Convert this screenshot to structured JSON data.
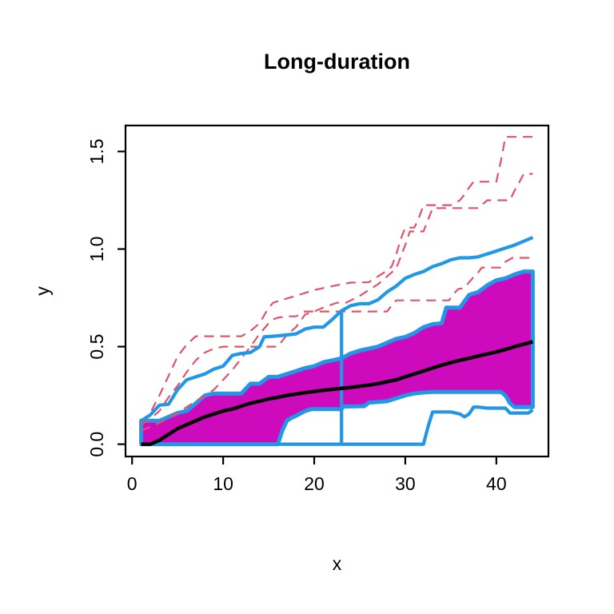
{
  "title": "Long-duration",
  "chart_data": {
    "type": "line",
    "title": "Long-duration",
    "xlabel": "x",
    "ylabel": "y",
    "xlim": [
      -0.72,
      45.72
    ],
    "ylim": [
      -0.063,
      1.633
    ],
    "xticks": [
      "0",
      "10",
      "20",
      "30",
      "40"
    ],
    "yticks": [
      "0.0",
      "0.5",
      "1.0",
      "1.5"
    ],
    "grid": false,
    "legend": "none",
    "description": "Functional boxplot: magenta central 50% region with blue envelope, black median curve, blue upper/lower fences with vertical whisker at x=23, three dashed red outlier curves",
    "colors": {
      "envelope_blue": "#2297E6",
      "region_magenta": "#CD0BBC",
      "outlier_red": "#DF536B",
      "median_black": "#000000"
    },
    "series": [
      {
        "name": "central-region",
        "type": "region",
        "fill": "#CD0BBC",
        "stroke": "#2297E6",
        "stroke_width": 5,
        "top": [
          [
            1,
            0.12
          ],
          [
            2,
            0.12
          ],
          [
            3,
            0.12
          ],
          [
            4,
            0.14
          ],
          [
            5,
            0.16
          ],
          [
            6,
            0.17
          ],
          [
            7,
            0.21
          ],
          [
            8,
            0.25
          ],
          [
            9,
            0.26
          ],
          [
            10,
            0.26
          ],
          [
            11,
            0.26
          ],
          [
            12,
            0.26
          ],
          [
            13,
            0.31
          ],
          [
            14,
            0.31
          ],
          [
            15,
            0.345
          ],
          [
            16,
            0.345
          ],
          [
            17,
            0.36
          ],
          [
            18,
            0.375
          ],
          [
            19,
            0.39
          ],
          [
            20,
            0.4
          ],
          [
            21,
            0.42
          ],
          [
            22,
            0.43
          ],
          [
            23,
            0.44
          ],
          [
            24,
            0.465
          ],
          [
            25,
            0.48
          ],
          [
            26,
            0.49
          ],
          [
            27,
            0.5
          ],
          [
            28,
            0.52
          ],
          [
            29,
            0.54
          ],
          [
            30,
            0.55
          ],
          [
            31,
            0.57
          ],
          [
            32,
            0.6
          ],
          [
            33,
            0.615
          ],
          [
            34,
            0.62
          ],
          [
            34.5,
            0.7
          ],
          [
            35,
            0.7
          ],
          [
            36,
            0.7
          ],
          [
            37,
            0.765
          ],
          [
            38,
            0.78
          ],
          [
            39,
            0.815
          ],
          [
            40,
            0.84
          ],
          [
            41,
            0.85
          ],
          [
            42,
            0.87
          ],
          [
            43,
            0.885
          ],
          [
            44,
            0.885
          ]
        ],
        "bottom": [
          [
            1,
            0
          ],
          [
            16,
            0
          ],
          [
            16.5,
            0.07
          ],
          [
            17,
            0.12
          ],
          [
            17.5,
            0.135
          ],
          [
            18,
            0.145
          ],
          [
            19,
            0.17
          ],
          [
            19.7,
            0.18
          ],
          [
            23,
            0.18
          ],
          [
            23.2,
            0.193
          ],
          [
            25.5,
            0.195
          ],
          [
            26,
            0.213
          ],
          [
            28,
            0.22
          ],
          [
            29,
            0.235
          ],
          [
            30,
            0.25
          ],
          [
            31,
            0.26
          ],
          [
            32,
            0.265
          ],
          [
            33,
            0.268
          ],
          [
            40.5,
            0.268
          ],
          [
            41,
            0.25
          ],
          [
            41.5,
            0.21
          ],
          [
            42,
            0.19
          ],
          [
            44,
            0.19
          ]
        ]
      },
      {
        "name": "outlier-curve-1",
        "color": "#DF536B",
        "width": 2.2,
        "dash": "12 8",
        "points": [
          [
            1,
            0.11
          ],
          [
            2,
            0.16
          ],
          [
            3,
            0.25
          ],
          [
            4,
            0.35
          ],
          [
            5,
            0.45
          ],
          [
            6,
            0.51
          ],
          [
            7,
            0.553
          ],
          [
            12,
            0.553
          ],
          [
            13,
            0.58
          ],
          [
            14,
            0.62
          ],
          [
            15,
            0.7
          ],
          [
            15.5,
            0.725
          ],
          [
            16.5,
            0.74
          ],
          [
            18,
            0.76
          ],
          [
            20,
            0.79
          ],
          [
            21,
            0.8
          ],
          [
            22,
            0.81
          ],
          [
            23,
            0.82
          ],
          [
            24,
            0.828
          ],
          [
            26,
            0.83
          ],
          [
            27,
            0.86
          ],
          [
            28,
            0.89
          ],
          [
            28.5,
            0.91
          ],
          [
            29,
            0.97
          ],
          [
            29.5,
            1.05
          ],
          [
            30,
            1.11
          ],
          [
            31,
            1.11
          ],
          [
            31.5,
            1.16
          ],
          [
            32,
            1.225
          ],
          [
            35,
            1.225
          ],
          [
            36,
            1.25
          ],
          [
            36.5,
            1.28
          ],
          [
            37,
            1.315
          ],
          [
            37.5,
            1.345
          ],
          [
            40,
            1.345
          ],
          [
            40.5,
            1.45
          ],
          [
            41,
            1.575
          ],
          [
            44,
            1.575
          ]
        ]
      },
      {
        "name": "outlier-curve-2",
        "color": "#DF536B",
        "width": 2.2,
        "dash": "12 8",
        "points": [
          [
            1,
            0.1
          ],
          [
            2,
            0.13
          ],
          [
            3,
            0.17
          ],
          [
            4,
            0.24
          ],
          [
            5,
            0.3
          ],
          [
            6,
            0.37
          ],
          [
            7,
            0.43
          ],
          [
            8,
            0.47
          ],
          [
            9,
            0.49
          ],
          [
            10,
            0.5
          ],
          [
            16,
            0.5
          ],
          [
            17,
            0.56
          ],
          [
            18,
            0.6
          ],
          [
            19,
            0.664
          ],
          [
            20,
            0.68
          ],
          [
            21,
            0.7
          ],
          [
            22.5,
            0.725
          ],
          [
            23.5,
            0.725
          ],
          [
            25,
            0.76
          ],
          [
            26,
            0.79
          ],
          [
            27,
            0.82
          ],
          [
            28,
            0.86
          ],
          [
            29,
            0.9
          ],
          [
            29.5,
            0.96
          ],
          [
            30,
            1.02
          ],
          [
            30.5,
            1.09
          ],
          [
            32,
            1.09
          ],
          [
            32.5,
            1.15
          ],
          [
            33,
            1.21
          ],
          [
            38,
            1.21
          ],
          [
            39,
            1.25
          ],
          [
            41.5,
            1.25
          ],
          [
            42,
            1.3
          ],
          [
            42.5,
            1.34
          ],
          [
            43,
            1.385
          ],
          [
            44,
            1.385
          ]
        ]
      },
      {
        "name": "outlier-curve-3",
        "color": "#DF536B",
        "width": 2.2,
        "dash": "12 8",
        "points": [
          [
            1,
            0.07
          ],
          [
            2,
            0.09
          ],
          [
            3,
            0.11
          ],
          [
            4,
            0.135
          ],
          [
            5,
            0.16
          ],
          [
            6,
            0.19
          ],
          [
            7,
            0.22
          ],
          [
            8,
            0.25
          ],
          [
            9,
            0.28
          ],
          [
            10,
            0.33
          ],
          [
            11,
            0.38
          ],
          [
            12,
            0.44
          ],
          [
            13,
            0.5
          ],
          [
            14,
            0.565
          ],
          [
            15,
            0.62
          ],
          [
            15.5,
            0.64
          ],
          [
            16,
            0.648
          ],
          [
            17,
            0.655
          ],
          [
            18,
            0.655
          ],
          [
            19,
            0.68
          ],
          [
            28,
            0.68
          ],
          [
            28.5,
            0.71
          ],
          [
            29,
            0.737
          ],
          [
            34.8,
            0.737
          ],
          [
            35.3,
            0.77
          ],
          [
            35.8,
            0.795
          ],
          [
            36.5,
            0.8
          ],
          [
            37,
            0.83
          ],
          [
            37.5,
            0.856
          ],
          [
            38,
            0.88
          ],
          [
            38.4,
            0.905
          ],
          [
            40.4,
            0.905
          ],
          [
            41,
            0.935
          ],
          [
            41.8,
            0.955
          ],
          [
            44,
            0.955
          ]
        ]
      },
      {
        "name": "lower-fence",
        "color": "#2297E6",
        "width": 4.2,
        "points": [
          [
            1,
            0
          ],
          [
            32,
            0
          ],
          [
            32.5,
            0.09
          ],
          [
            33,
            0.165
          ],
          [
            35,
            0.165
          ],
          [
            36,
            0.155
          ],
          [
            36.5,
            0.14
          ],
          [
            37,
            0.155
          ],
          [
            37.5,
            0.19
          ],
          [
            38,
            0.19
          ],
          [
            39,
            0.185
          ],
          [
            41,
            0.185
          ],
          [
            41.5,
            0.16
          ],
          [
            43.5,
            0.16
          ],
          [
            44,
            0.175
          ]
        ]
      },
      {
        "name": "upper-fence",
        "color": "#2297E6",
        "width": 4.2,
        "points": [
          [
            1,
            0.12
          ],
          [
            2,
            0.15
          ],
          [
            3,
            0.2
          ],
          [
            4,
            0.205
          ],
          [
            5,
            0.28
          ],
          [
            6,
            0.33
          ],
          [
            7,
            0.345
          ],
          [
            8,
            0.36
          ],
          [
            9,
            0.385
          ],
          [
            10,
            0.4
          ],
          [
            11,
            0.455
          ],
          [
            12,
            0.465
          ],
          [
            13,
            0.47
          ],
          [
            14,
            0.5
          ],
          [
            14.5,
            0.55
          ],
          [
            16,
            0.555
          ],
          [
            17,
            0.56
          ],
          [
            18,
            0.565
          ],
          [
            19,
            0.59
          ],
          [
            20,
            0.6
          ],
          [
            21,
            0.6
          ],
          [
            21.5,
            0.62
          ],
          [
            22,
            0.64
          ],
          [
            23,
            0.684
          ],
          [
            24,
            0.71
          ],
          [
            25,
            0.72
          ],
          [
            26,
            0.72
          ],
          [
            27,
            0.74
          ],
          [
            28,
            0.78
          ],
          [
            29,
            0.81
          ],
          [
            30,
            0.85
          ],
          [
            31,
            0.87
          ],
          [
            32,
            0.885
          ],
          [
            33,
            0.91
          ],
          [
            34,
            0.925
          ],
          [
            35,
            0.945
          ],
          [
            36,
            0.955
          ],
          [
            37,
            0.955
          ],
          [
            38,
            0.96
          ],
          [
            39,
            0.975
          ],
          [
            40,
            0.99
          ],
          [
            41,
            1.005
          ],
          [
            42,
            1.02
          ],
          [
            43,
            1.04
          ],
          [
            44,
            1.06
          ]
        ]
      },
      {
        "name": "whisker-vertical",
        "color": "#2297E6",
        "width": 4.2,
        "points": [
          [
            23,
            0
          ],
          [
            23,
            0.684
          ]
        ]
      },
      {
        "name": "median-curve",
        "color": "#000000",
        "width": 4.5,
        "points": [
          [
            1,
            0
          ],
          [
            2,
            0
          ],
          [
            3,
            0.02
          ],
          [
            4,
            0.05
          ],
          [
            5,
            0.08
          ],
          [
            6,
            0.1
          ],
          [
            7,
            0.12
          ],
          [
            8,
            0.14
          ],
          [
            9,
            0.155
          ],
          [
            10,
            0.17
          ],
          [
            11,
            0.18
          ],
          [
            12,
            0.195
          ],
          [
            13,
            0.21
          ],
          [
            14,
            0.22
          ],
          [
            15,
            0.232
          ],
          [
            16,
            0.24
          ],
          [
            17,
            0.25
          ],
          [
            18,
            0.257
          ],
          [
            19,
            0.264
          ],
          [
            20,
            0.27
          ],
          [
            21,
            0.276
          ],
          [
            22,
            0.281
          ],
          [
            23,
            0.286
          ],
          [
            24,
            0.291
          ],
          [
            25,
            0.297
          ],
          [
            26,
            0.303
          ],
          [
            27,
            0.31
          ],
          [
            28,
            0.32
          ],
          [
            29,
            0.33
          ],
          [
            30,
            0.345
          ],
          [
            31,
            0.36
          ],
          [
            32,
            0.375
          ],
          [
            33,
            0.39
          ],
          [
            34,
            0.405
          ],
          [
            35,
            0.418
          ],
          [
            36,
            0.43
          ],
          [
            37,
            0.44
          ],
          [
            38,
            0.452
          ],
          [
            39,
            0.462
          ],
          [
            40,
            0.473
          ],
          [
            41,
            0.485
          ],
          [
            42,
            0.5
          ],
          [
            43,
            0.512
          ],
          [
            44,
            0.525
          ]
        ]
      }
    ]
  }
}
